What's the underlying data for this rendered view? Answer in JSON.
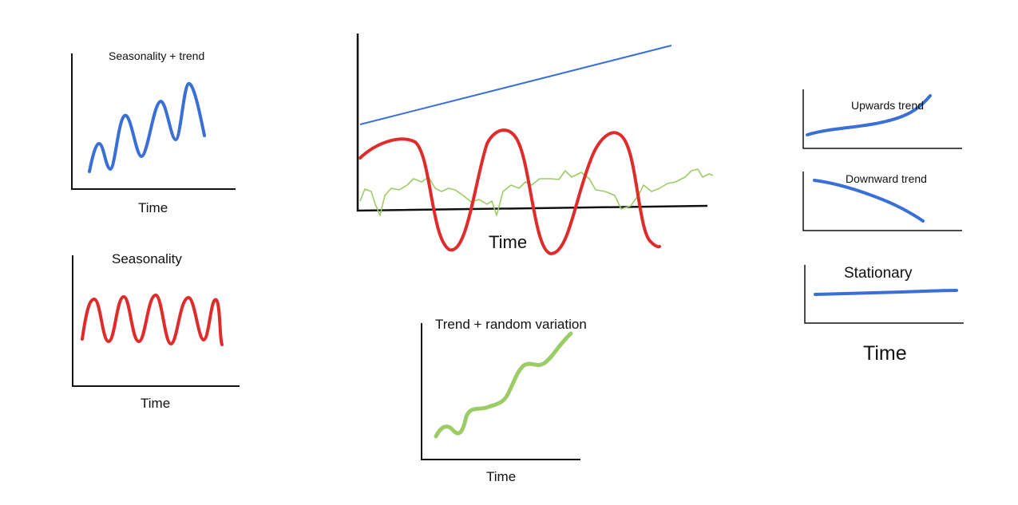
{
  "colors": {
    "trend": "#3a6fd8",
    "seasonality": "#e02b2b",
    "random": "#9ccc65",
    "axis": "#111111"
  },
  "panels": {
    "seasonality_trend": {
      "title": "Seasonality + trend",
      "xlabel": "Time"
    },
    "seasonality": {
      "title": "Seasonality",
      "xlabel": "Time"
    },
    "combined": {
      "xlabel": "Time"
    },
    "trend_random": {
      "title": "Trend + random variation",
      "xlabel": "Time"
    },
    "upwards": {
      "title": "Upwards trend"
    },
    "downward": {
      "title": "Downward trend"
    },
    "stationary": {
      "title": "Stationary"
    },
    "right_column": {
      "xlabel": "Time"
    }
  }
}
